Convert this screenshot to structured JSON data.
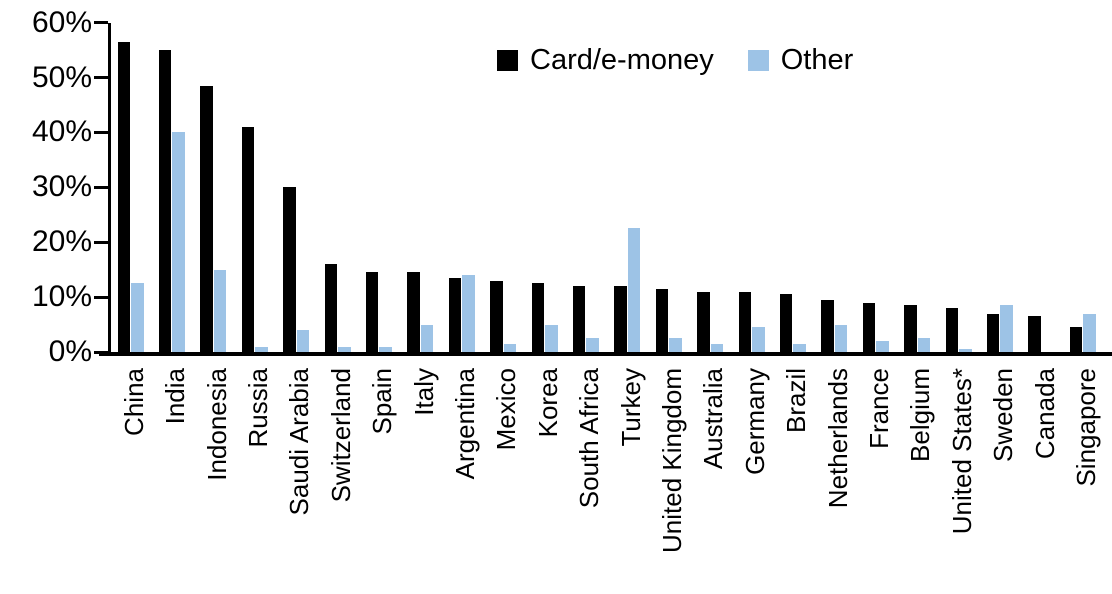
{
  "chart_data": {
    "type": "bar",
    "title": "",
    "categories": [
      "China",
      "India",
      "Indonesia",
      "Russia",
      "Saudi Arabia",
      "Switzerland",
      "Spain",
      "Italy",
      "Argentina",
      "Mexico",
      "Korea",
      "South Africa",
      "Turkey",
      "United Kingdom",
      "Australia",
      "Germany",
      "Brazil",
      "Netherlands",
      "France",
      "Belgium",
      "United States*",
      "Sweden",
      "Canada",
      "Singapore"
    ],
    "series": [
      {
        "name": "Card/e-money",
        "color": "#000000",
        "values": [
          56.5,
          55,
          48.5,
          41,
          30,
          16,
          14.5,
          14.5,
          13.5,
          13,
          12.5,
          12,
          12,
          11.5,
          11,
          11,
          10.5,
          9.5,
          9,
          8.5,
          8,
          7,
          6.5,
          4.5
        ]
      },
      {
        "name": "Other",
        "color": "#9DC3E6",
        "values": [
          12.5,
          40,
          15,
          1,
          4,
          1,
          1,
          5,
          14,
          1.5,
          5,
          2.5,
          22.5,
          2.5,
          1.5,
          4.5,
          1.5,
          5,
          2,
          2.5,
          0.5,
          8.5,
          0,
          7
        ]
      }
    ],
    "xlabel": "",
    "ylabel": "",
    "ylim": [
      0,
      60
    ],
    "y_tick_labels": [
      "0%",
      "10%",
      "20%",
      "30%",
      "40%",
      "50%",
      "60%"
    ],
    "grid": false,
    "legend_position": "top-center",
    "x_label_rotation": -90
  }
}
